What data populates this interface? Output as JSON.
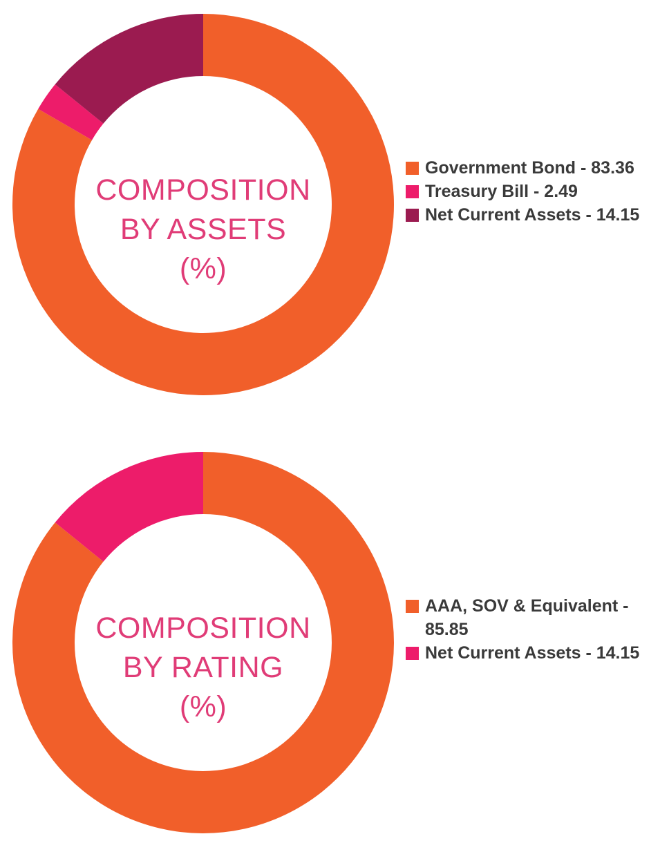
{
  "chart_data": [
    {
      "type": "pie",
      "center_label": [
        "COMPOSITION",
        "BY ASSETS",
        "(%)"
      ],
      "slices": [
        {
          "label": "Government Bond - 83.36",
          "value": 83.36,
          "color": "#f15f2a"
        },
        {
          "label": "Treasury Bill - 2.49",
          "value": 2.49,
          "color": "#ed1c6a"
        },
        {
          "label": "Net Current Assets - 14.15",
          "value": 14.15,
          "color": "#9b1b50"
        }
      ],
      "legend_position": "right"
    },
    {
      "type": "pie",
      "center_label": [
        "COMPOSITION",
        "BY RATING",
        "(%)"
      ],
      "slices": [
        {
          "label": "AAA, SOV & Equivalent - 85.85",
          "value": 85.85,
          "color": "#f15f2a"
        },
        {
          "label": "Net Current Assets - 14.15",
          "value": 14.15,
          "color": "#ed1c6a"
        }
      ],
      "legend_position": "right"
    }
  ]
}
